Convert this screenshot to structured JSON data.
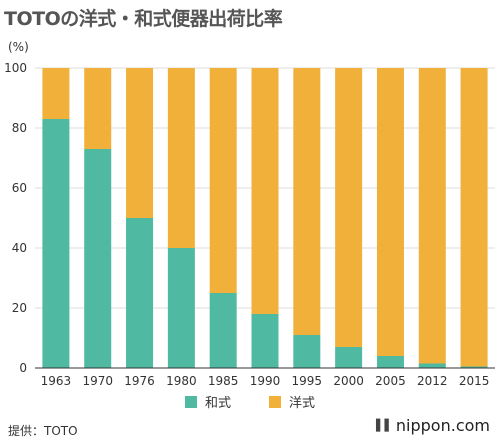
{
  "title": "TOTOの洋式・和式便器出荷比率",
  "unit_label": "(%)",
  "source": "提供：TOTO",
  "logo_text": "nippon.com",
  "colors": {
    "washiki": "#4fb9a1",
    "youshiki": "#f0b03a",
    "grid": "#dddddd",
    "axis": "#333333"
  },
  "chart_data": {
    "type": "bar",
    "stacked": true,
    "title": "TOTOの洋式・和式便器出荷比率",
    "ylabel": "(%)",
    "xlabel": "",
    "ylim": [
      0,
      100
    ],
    "yticks": [
      0,
      20,
      40,
      60,
      80,
      100
    ],
    "grid": true,
    "legend_position": "bottom",
    "categories": [
      "1963",
      "1970",
      "1976",
      "1980",
      "1985",
      "1990",
      "1995",
      "2000",
      "2005",
      "2012",
      "2015"
    ],
    "series": [
      {
        "name": "和式",
        "color": "#4fb9a1",
        "values": [
          83,
          73,
          50,
          40,
          25,
          18,
          11,
          7,
          4,
          1.5,
          0.5
        ]
      },
      {
        "name": "洋式",
        "color": "#f0b03a",
        "values": [
          17,
          27,
          50,
          60,
          75,
          82,
          89,
          93,
          96,
          98.5,
          99.5
        ]
      }
    ]
  }
}
